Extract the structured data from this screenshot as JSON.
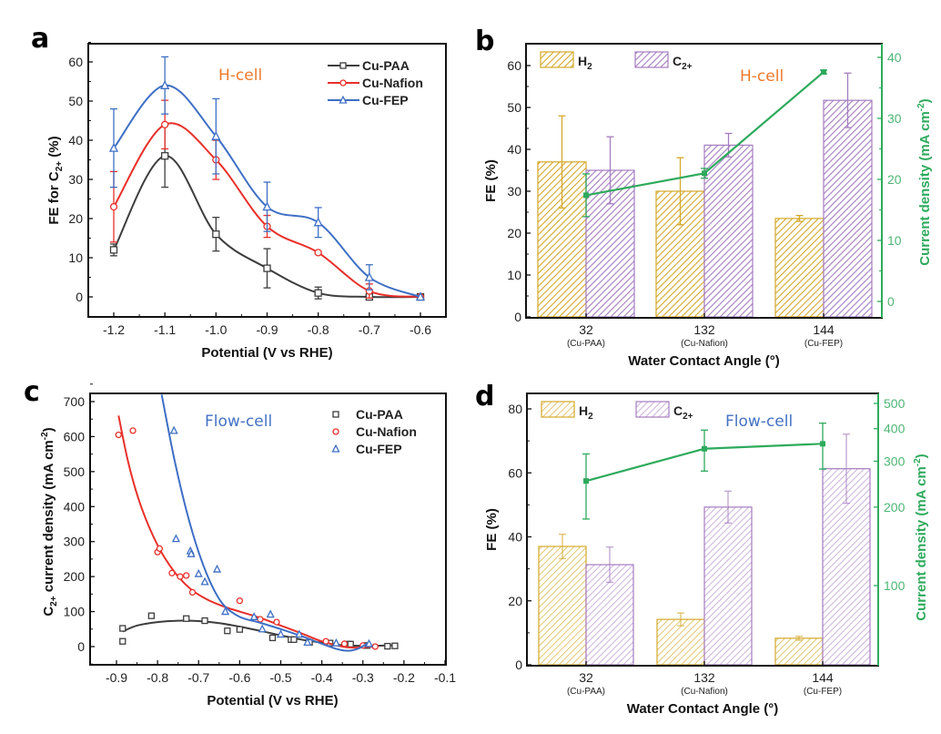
{
  "figure": {
    "panels": [
      "a",
      "b",
      "c",
      "d"
    ]
  },
  "colors": {
    "cu_paa": "#3d3d3d",
    "cu_nafion": "#e8302a",
    "cu_fep": "#3e6fc4",
    "h2_bar": "#d4a82a",
    "c2_bar": "#a57cc0",
    "current_density": "#2eaa5c",
    "hcell_label": "#ec7a2c",
    "flowcell_label": "#4472c4"
  },
  "chart_data": [
    {
      "panel": "a",
      "type": "line",
      "annotation": "H-cell",
      "xlabel": "Potential (V vs RHE)",
      "ylabel": "FE for C2+ (%)",
      "ylabel_main": "FE for C",
      "ylabel_sub": "2+",
      "ylabel_tail": " (%)",
      "xlim": [
        -1.25,
        -0.58
      ],
      "ylim": [
        -5,
        65
      ],
      "xticks": [
        -1.2,
        -1.1,
        -1.0,
        -0.9,
        -0.8,
        -0.7,
        -0.6
      ],
      "xtick_labels": [
        "-1.2",
        "-1.1",
        "-1.0",
        "-0.9",
        "-0.8",
        "-0.7",
        "-0.6"
      ],
      "yticks": [
        0,
        10,
        20,
        30,
        40,
        50,
        60
      ],
      "ytick_labels": [
        "0",
        "10",
        "20",
        "30",
        "40",
        "50",
        "60"
      ],
      "legend_position": "top-right",
      "x": [
        -1.2,
        -1.1,
        -1.0,
        -0.9,
        -0.8,
        -0.7,
        -0.6
      ],
      "series": [
        {
          "name": "Cu-PAA",
          "marker": "square",
          "values": [
            12,
            36,
            16,
            7.3,
            1,
            0,
            0
          ],
          "errors": [
            1.5,
            8,
            4.3,
            5,
            1.5,
            0.3,
            0
          ]
        },
        {
          "name": "Cu-Nafion",
          "marker": "circle",
          "values": [
            23,
            44,
            35,
            18,
            11.3,
            1.5,
            0
          ],
          "errors": [
            9,
            6.2,
            5,
            2.8,
            0.3,
            1.8,
            0
          ]
        },
        {
          "name": "Cu-FEP",
          "marker": "triangle",
          "values": [
            38,
            54,
            41,
            23,
            19,
            5,
            0
          ],
          "errors": [
            10,
            7.3,
            9.6,
            6.3,
            3.8,
            3.2,
            0
          ]
        }
      ]
    },
    {
      "panel": "b",
      "type": "bar",
      "annotation": "H-cell",
      "xlabel": "Water Contact Angle (°)",
      "ylabel": "FE (%)",
      "y2label": "Current density (mA cm-2)",
      "y2label_main": "Current density (mA cm",
      "y2label_sup": "-2",
      "y2label_tail": ")",
      "categories": [
        "32",
        "132",
        "144"
      ],
      "category_sublabels": [
        "(Cu-PAA)",
        "(Cu-Nafion)",
        "(Cu-FEP)"
      ],
      "ylim": [
        0,
        65
      ],
      "yticks": [
        0,
        10,
        20,
        30,
        40,
        50,
        60
      ],
      "ytick_labels": [
        "0",
        "10",
        "20",
        "30",
        "40",
        "50",
        "60"
      ],
      "y2lim": [
        -2.6,
        42.3
      ],
      "y2ticks": [
        0,
        10,
        20,
        30,
        40
      ],
      "y2tick_labels": [
        "0",
        "10",
        "20",
        "30",
        "40"
      ],
      "legend_position": "top-left",
      "series": [
        {
          "name": "H2",
          "label_main": "H",
          "label_sub": "2",
          "values": [
            37,
            30,
            23.5
          ],
          "errors": [
            11,
            8,
            0.7
          ]
        },
        {
          "name": "C2+",
          "label_main": "C",
          "label_sub": "2+",
          "values": [
            35,
            41,
            51.7
          ],
          "errors": [
            8,
            2.8,
            6.5
          ]
        }
      ],
      "line_series": {
        "name": "Current density",
        "axis": "right",
        "values": [
          17.4,
          21,
          37.6
        ],
        "errors": [
          3.5,
          0.8,
          0.3
        ]
      }
    },
    {
      "panel": "c",
      "type": "scatter",
      "annotation": "Flow-cell",
      "xlabel": "Potential (V vs RHE)",
      "ylabel": "C2+ current density (mA cm-2)",
      "ylabel_main": "C",
      "ylabel_sub": "2+",
      "ylabel_mid": " current density (mA cm",
      "ylabel_sup": "-2",
      "ylabel_tail": ")",
      "xlim": [
        -0.95,
        -0.1
      ],
      "ylim": [
        -50,
        720
      ],
      "xticks": [
        -0.9,
        -0.8,
        -0.7,
        -0.6,
        -0.5,
        -0.4,
        -0.3,
        -0.2,
        -0.1
      ],
      "xtick_labels": [
        "-0.9",
        "-0.8",
        "-0.7",
        "-0.6",
        "-0.5",
        "-0.4",
        "-0.3",
        "-0.2",
        "-0.1"
      ],
      "yticks": [
        0,
        100,
        200,
        300,
        400,
        500,
        600,
        700
      ],
      "ytick_labels": [
        "0",
        "100",
        "200",
        "300",
        "400",
        "500",
        "600",
        "700"
      ],
      "legend_position": "top-right",
      "series": [
        {
          "name": "Cu-PAA",
          "marker": "square",
          "points": [
            [
              -0.885,
              52
            ],
            [
              -0.885,
              15
            ],
            [
              -0.815,
              88
            ],
            [
              -0.73,
              80
            ],
            [
              -0.685,
              74
            ],
            [
              -0.63,
              45
            ],
            [
              -0.6,
              49
            ],
            [
              -0.52,
              25
            ],
            [
              -0.475,
              20
            ],
            [
              -0.468,
              20
            ],
            [
              -0.43,
              12
            ],
            [
              -0.38,
              10
            ],
            [
              -0.335,
              7
            ],
            [
              -0.33,
              7
            ],
            [
              -0.29,
              3
            ],
            [
              -0.24,
              1
            ],
            [
              -0.222,
              2
            ]
          ],
          "fit": [
            [
              -0.885,
              43
            ],
            [
              -0.85,
              60
            ],
            [
              -0.8,
              70
            ],
            [
              -0.75,
              74
            ],
            [
              -0.7,
              73
            ],
            [
              -0.65,
              67
            ],
            [
              -0.6,
              57
            ],
            [
              -0.55,
              45
            ],
            [
              -0.5,
              32
            ],
            [
              -0.45,
              20
            ],
            [
              -0.4,
              11
            ],
            [
              -0.35,
              4
            ],
            [
              -0.3,
              2
            ],
            [
              -0.25,
              3
            ],
            [
              -0.222,
              4
            ]
          ]
        },
        {
          "name": "Cu-Nafion",
          "marker": "circle",
          "points": [
            [
              -0.895,
              605
            ],
            [
              -0.86,
              617
            ],
            [
              -0.8,
              270
            ],
            [
              -0.795,
              280
            ],
            [
              -0.765,
              210
            ],
            [
              -0.745,
              200
            ],
            [
              -0.73,
              203
            ],
            [
              -0.715,
              155
            ],
            [
              -0.6,
              131
            ],
            [
              -0.55,
              78
            ],
            [
              -0.51,
              70
            ],
            [
              -0.39,
              15
            ],
            [
              -0.345,
              8
            ],
            [
              -0.3,
              3
            ],
            [
              -0.27,
              0
            ]
          ],
          "fit": [
            [
              -0.895,
              660
            ],
            [
              -0.87,
              520
            ],
            [
              -0.84,
              400
            ],
            [
              -0.8,
              290
            ],
            [
              -0.76,
              215
            ],
            [
              -0.72,
              165
            ],
            [
              -0.68,
              135
            ],
            [
              -0.64,
              115
            ],
            [
              -0.6,
              100
            ],
            [
              -0.55,
              82
            ],
            [
              -0.5,
              60
            ],
            [
              -0.45,
              38
            ],
            [
              -0.4,
              15
            ],
            [
              -0.35,
              0
            ],
            [
              -0.32,
              -3
            ],
            [
              -0.3,
              -2
            ],
            [
              -0.265,
              0
            ]
          ]
        },
        {
          "name": "Cu-FEP",
          "marker": "triangle",
          "points": [
            [
              -0.76,
              617
            ],
            [
              -0.755,
              308
            ],
            [
              -0.72,
              273
            ],
            [
              -0.718,
              265
            ],
            [
              -0.7,
              208
            ],
            [
              -0.685,
              185
            ],
            [
              -0.655,
              221
            ],
            [
              -0.635,
              100
            ],
            [
              -0.565,
              85
            ],
            [
              -0.545,
              50
            ],
            [
              -0.525,
              92
            ],
            [
              -0.5,
              35
            ],
            [
              -0.455,
              35
            ],
            [
              -0.435,
              12
            ],
            [
              -0.365,
              10
            ],
            [
              -0.285,
              8
            ]
          ],
          "fit": [
            [
              -0.79,
              720
            ],
            [
              -0.76,
              540
            ],
            [
              -0.73,
              390
            ],
            [
              -0.7,
              270
            ],
            [
              -0.67,
              180
            ],
            [
              -0.64,
              120
            ],
            [
              -0.6,
              85
            ],
            [
              -0.55,
              68
            ],
            [
              -0.5,
              50
            ],
            [
              -0.45,
              30
            ],
            [
              -0.4,
              8
            ],
            [
              -0.36,
              -8
            ],
            [
              -0.335,
              -12
            ],
            [
              -0.31,
              -5
            ],
            [
              -0.285,
              12
            ]
          ]
        }
      ]
    },
    {
      "panel": "d",
      "type": "bar",
      "annotation": "Flow-cell",
      "xlabel": "Water Contact Angle (°)",
      "ylabel": "FE (%)",
      "y2label": "Current density (mA cm-2)",
      "y2label_main": "Current density (mA cm",
      "y2label_sup": "-2",
      "y2label_tail": ")",
      "y2scale": "log",
      "categories": [
        "32",
        "132",
        "144"
      ],
      "category_sublabels": [
        "(Cu-PAA)",
        "(Cu-Nafion)",
        "(Cu-FEP)"
      ],
      "ylim": [
        0,
        85
      ],
      "yticks": [
        0,
        20,
        40,
        60,
        80
      ],
      "ytick_labels": [
        "0",
        "20",
        "40",
        "60",
        "80"
      ],
      "y2ticks": [
        100,
        200,
        300,
        400,
        500
      ],
      "y2tick_labels": [
        "100",
        "200",
        "300",
        "400",
        "500"
      ],
      "legend_position": "top-left",
      "series": [
        {
          "name": "H2",
          "label_main": "H",
          "label_sub": "2",
          "values": [
            37,
            14.2,
            8.3
          ],
          "errors": [
            3.8,
            2,
            0.6
          ]
        },
        {
          "name": "C2+",
          "label_main": "C",
          "label_sub": "2+",
          "values": [
            31.3,
            49.3,
            61.3
          ],
          "errors": [
            5.5,
            5,
            10.8
          ]
        }
      ],
      "line_series": {
        "name": "Current density",
        "axis": "right",
        "values": [
          252,
          335,
          350
        ],
        "errors": [
          [
            180,
            320
          ],
          [
            275,
            395
          ],
          [
            280,
            420
          ]
        ]
      }
    }
  ]
}
